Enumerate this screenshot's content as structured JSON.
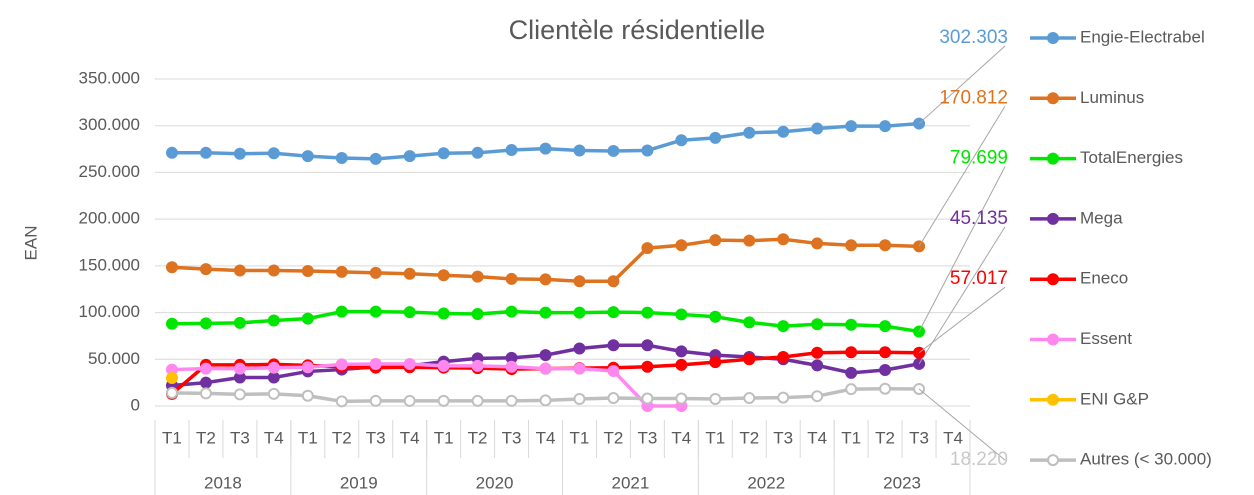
{
  "chart_data": {
    "type": "line",
    "title": "Clientèle résidentielle",
    "y_label": "EAN",
    "categories": [
      "T1",
      "T2",
      "T3",
      "T4",
      "T1",
      "T2",
      "T3",
      "T4",
      "T1",
      "T2",
      "T3",
      "T4",
      "T1",
      "T2",
      "T3",
      "T4",
      "T1",
      "T2",
      "T3",
      "T4",
      "T1",
      "T2",
      "T3",
      "T4"
    ],
    "groups": [
      "2018",
      "2019",
      "2020",
      "2021",
      "2022",
      "2023"
    ],
    "ylim": [
      0,
      350000
    ],
    "yticks": [
      0,
      {
        "value": 50000,
        "label": "50.000"
      },
      {
        "value": 100000,
        "label": "100.000"
      },
      {
        "value": 150000,
        "label": "150.000"
      },
      {
        "value": 200000,
        "label": "200.000"
      },
      {
        "value": 250000,
        "label": "250.000"
      },
      {
        "value": 300000,
        "label": "300.000"
      },
      {
        "value": 350000,
        "label": "350.000"
      }
    ],
    "grid": true,
    "legend": "right",
    "series": [
      {
        "name": "Engie-Electrabel",
        "color": "#5b9bd5",
        "values": [
          271000,
          271000,
          270000,
          270500,
          267500,
          265500,
          264500,
          267500,
          270500,
          271000,
          274000,
          275500,
          273500,
          273000,
          273500,
          284500,
          287000,
          292500,
          293500,
          297000,
          299500,
          299500,
          302303,
          null
        ],
        "value_labels": [
          null,
          null,
          null,
          null,
          null,
          null,
          null,
          null,
          null,
          null,
          null,
          null,
          null,
          null,
          null,
          null,
          null,
          null,
          null,
          null,
          null,
          null,
          "302.303",
          null
        ]
      },
      {
        "name": "Luminus",
        "color": "#dd7320",
        "values": [
          148500,
          146500,
          145000,
          145000,
          144500,
          143500,
          142500,
          141500,
          140000,
          138500,
          136000,
          135500,
          133500,
          133500,
          169000,
          172000,
          177500,
          177000,
          178500,
          174000,
          172000,
          172000,
          170812,
          null
        ],
        "value_labels": [
          null,
          null,
          null,
          null,
          null,
          null,
          null,
          null,
          null,
          null,
          null,
          null,
          null,
          null,
          null,
          null,
          null,
          null,
          null,
          null,
          null,
          null,
          "170.812",
          null
        ]
      },
      {
        "name": "TotalEnergies",
        "color": "#00e600",
        "values": [
          88000,
          88500,
          89000,
          91500,
          93500,
          101000,
          101000,
          100500,
          99000,
          98500,
          101000,
          100000,
          100000,
          100500,
          100000,
          98000,
          95500,
          89500,
          85500,
          87500,
          87000,
          85500,
          79699,
          null
        ],
        "value_labels": [
          null,
          null,
          null,
          null,
          null,
          null,
          null,
          null,
          null,
          null,
          null,
          null,
          null,
          null,
          null,
          null,
          null,
          null,
          null,
          null,
          null,
          null,
          "79.699",
          null
        ]
      },
      {
        "name": "Mega",
        "color": "#7030a0",
        "values": [
          22000,
          25000,
          30500,
          30500,
          37000,
          39000,
          42000,
          43000,
          47500,
          51000,
          51500,
          54500,
          61500,
          65000,
          65000,
          58500,
          54500,
          52500,
          50000,
          43500,
          35500,
          38500,
          45135,
          null
        ],
        "value_labels": [
          null,
          null,
          null,
          null,
          null,
          null,
          null,
          null,
          null,
          null,
          null,
          null,
          null,
          null,
          null,
          null,
          null,
          null,
          null,
          null,
          null,
          null,
          "45.135",
          null
        ]
      },
      {
        "name": "Eneco",
        "color": "#ff0000",
        "values": [
          13000,
          44000,
          44000,
          44500,
          43500,
          42000,
          41000,
          41500,
          41000,
          40500,
          39500,
          40000,
          40500,
          41000,
          42000,
          44000,
          47000,
          50000,
          52500,
          57000,
          57500,
          57500,
          57017,
          null
        ],
        "value_labels": [
          null,
          null,
          null,
          null,
          null,
          null,
          null,
          null,
          null,
          null,
          null,
          null,
          null,
          null,
          null,
          null,
          null,
          null,
          null,
          null,
          null,
          null,
          "57.017",
          null
        ]
      },
      {
        "name": "Essent",
        "color": "#ff88ee",
        "values": [
          39000,
          40000,
          40000,
          41000,
          41500,
          44500,
          45000,
          45000,
          43000,
          43000,
          42000,
          40000,
          40000,
          37500,
          0,
          0,
          null,
          null,
          null,
          null,
          null,
          null,
          null,
          null
        ]
      },
      {
        "name": "ENI G&P",
        "color": "#ffc000",
        "values": [
          30000,
          null,
          null,
          null,
          null,
          null,
          null,
          null,
          null,
          null,
          null,
          null,
          null,
          null,
          null,
          null,
          null,
          null,
          null,
          null,
          null,
          null,
          null,
          null
        ]
      },
      {
        "name": "Autres (< 30.000)",
        "color": "#bfbfbf",
        "hollow": true,
        "values": [
          14000,
          13500,
          12500,
          13000,
          11000,
          5000,
          5500,
          5500,
          5500,
          5500,
          5500,
          6000,
          7500,
          8500,
          8000,
          8000,
          7500,
          8500,
          9000,
          10500,
          18000,
          18500,
          18220,
          null
        ],
        "value_labels": [
          null,
          null,
          null,
          null,
          null,
          null,
          null,
          null,
          null,
          null,
          null,
          null,
          null,
          null,
          null,
          null,
          null,
          null,
          null,
          null,
          null,
          null,
          "18.220",
          null
        ]
      }
    ]
  }
}
